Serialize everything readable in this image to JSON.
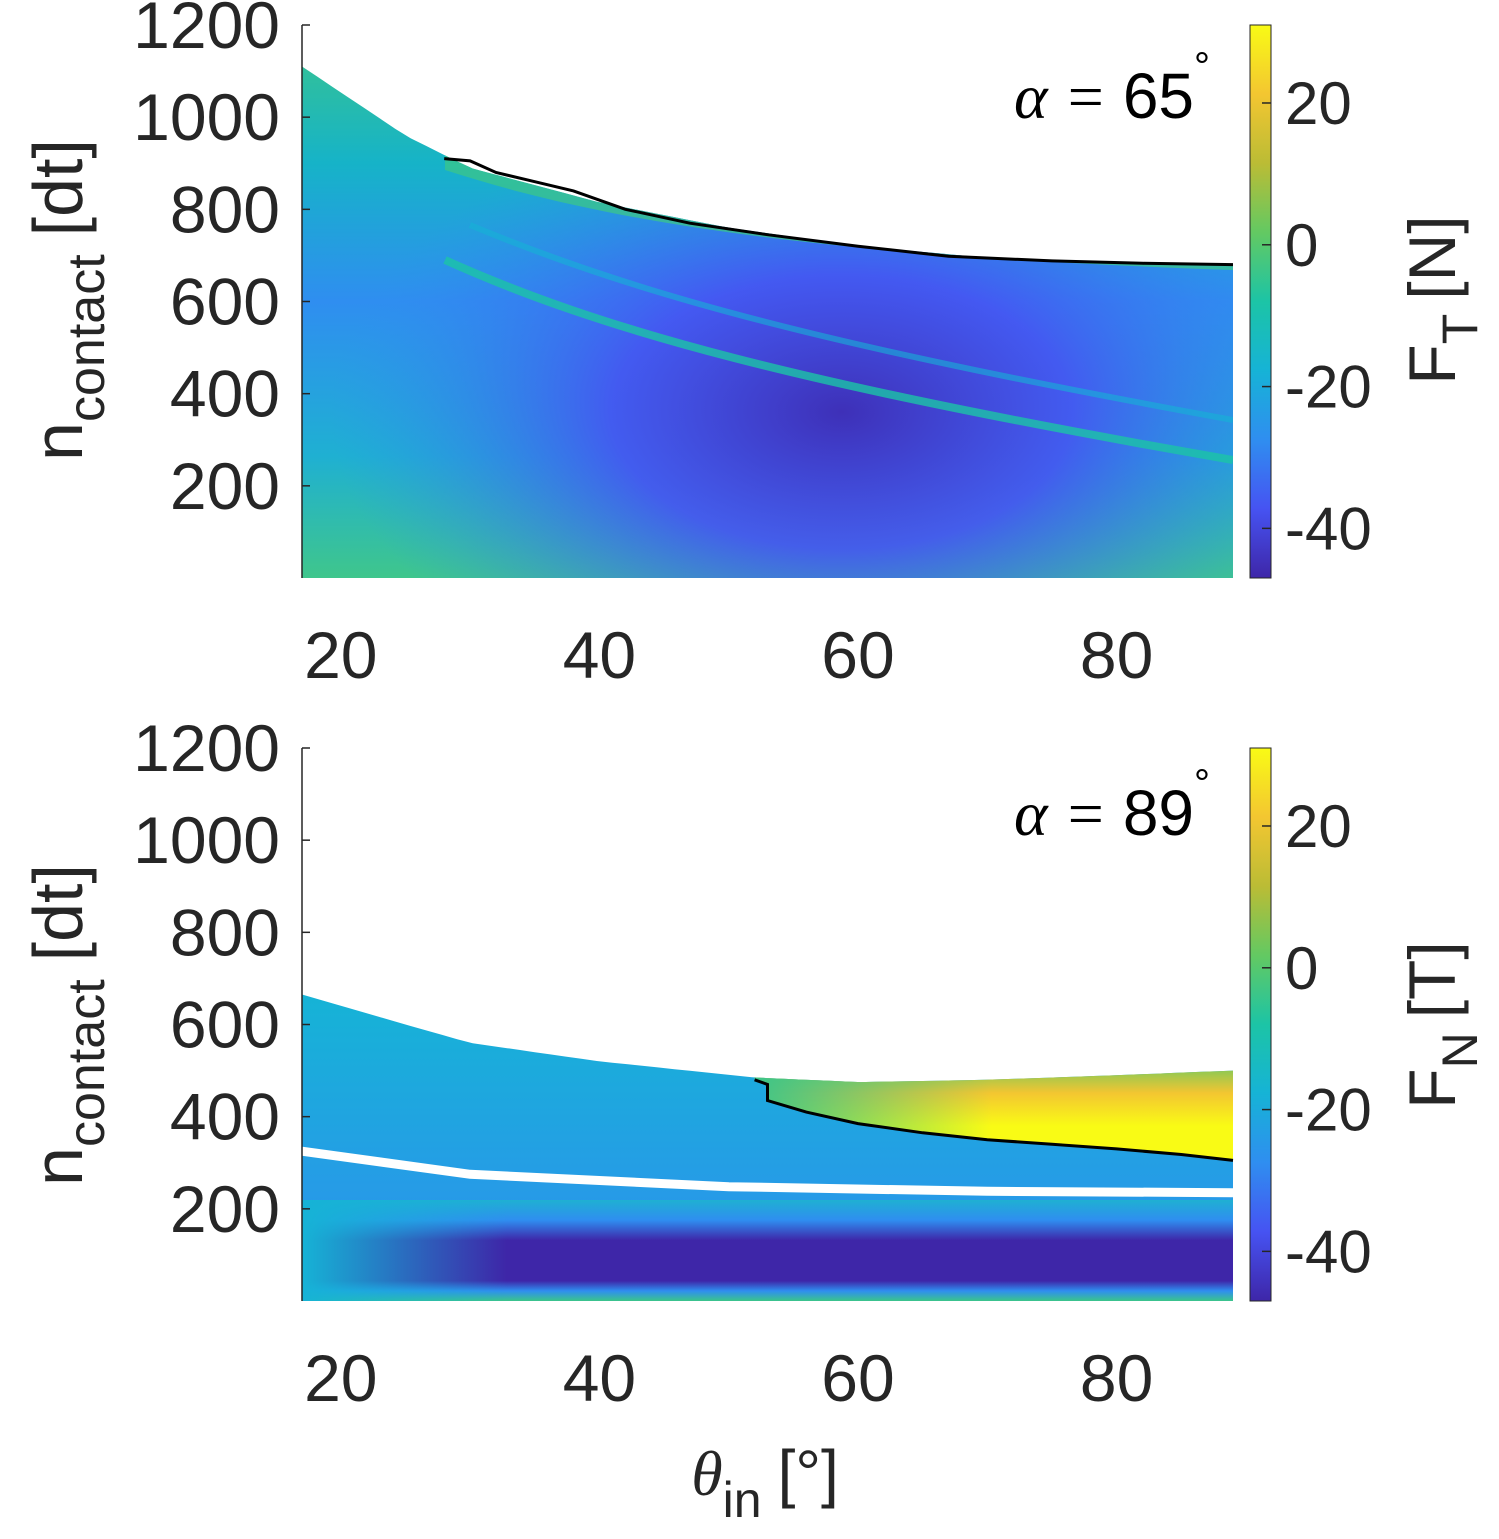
{
  "chart_data": [
    {
      "type": "heatmap",
      "panel": "top",
      "annotation": {
        "prefix": "α = ",
        "value": "65",
        "unit": "°"
      },
      "ylabel": {
        "main": "n",
        "sub": "contact",
        "unit": "[dt]"
      },
      "xlabel": "",
      "xlim": [
        17,
        89
      ],
      "ylim": [
        0,
        1200
      ],
      "x_ticks": [
        "20",
        "40",
        "60",
        "80"
      ],
      "y_ticks": [
        "200",
        "400",
        "600",
        "800",
        "1000",
        "1200"
      ],
      "colorbar": {
        "label_main": "F",
        "label_sub": "T",
        "label_unit": "[N]",
        "range": [
          -47,
          31
        ],
        "ticks": [
          "-40",
          "-20",
          "0",
          "20"
        ],
        "colors": [
          "#3e26a8",
          "#4653f2",
          "#2f8ef0",
          "#16b3d6",
          "#1cc4a6",
          "#63c962",
          "#bbbc35",
          "#f3c631",
          "#f9fb15"
        ]
      },
      "valid_region_top": {
        "x": [
          17,
          25,
          30,
          40,
          50,
          60,
          70,
          80,
          89
        ],
        "y": [
          1110,
          960,
          890,
          815,
          760,
          720,
          695,
          685,
          680
        ]
      },
      "contour": {
        "x": [
          28,
          30,
          32,
          35,
          38,
          42,
          47,
          53,
          60,
          67,
          75,
          82,
          89
        ],
        "y": [
          910,
          905,
          880,
          860,
          840,
          800,
          770,
          745,
          720,
          698,
          688,
          683,
          680
        ]
      }
    },
    {
      "type": "heatmap",
      "panel": "bottom",
      "annotation": {
        "prefix": "α = ",
        "value": "89",
        "unit": "°"
      },
      "ylabel": {
        "main": "n",
        "sub": "contact",
        "unit": "[dt]"
      },
      "xlabel": {
        "main": "θ",
        "sub": "in",
        "unit": "[°]"
      },
      "xlim": [
        17,
        89
      ],
      "ylim": [
        0,
        1200
      ],
      "x_ticks": [
        "20",
        "40",
        "60",
        "80"
      ],
      "y_ticks": [
        "200",
        "400",
        "600",
        "800",
        "1000",
        "1200"
      ],
      "colorbar": {
        "label_main": "F",
        "label_sub": "N",
        "label_unit": "[T]",
        "range": [
          -47,
          31
        ],
        "ticks": [
          "-40",
          "-20",
          "0",
          "20"
        ],
        "colors": [
          "#3e26a8",
          "#4653f2",
          "#2f8ef0",
          "#16b3d6",
          "#1cc4a6",
          "#63c962",
          "#bbbc35",
          "#f3c631",
          "#f9fb15"
        ]
      },
      "valid_region_top": {
        "x": [
          17,
          25,
          30,
          40,
          52,
          60,
          70,
          80,
          89
        ],
        "y": [
          665,
          600,
          560,
          520,
          485,
          475,
          480,
          490,
          500
        ]
      },
      "gap_band": {
        "x": [
          17,
          30,
          50,
          70,
          89
        ],
        "y": [
          325,
          275,
          248,
          238,
          235
        ]
      },
      "contour": {
        "x": [
          52,
          53,
          53,
          56,
          60,
          65,
          70,
          75,
          80,
          85,
          89
        ],
        "y": [
          480,
          470,
          435,
          410,
          385,
          365,
          350,
          340,
          330,
          318,
          305
        ]
      }
    }
  ]
}
